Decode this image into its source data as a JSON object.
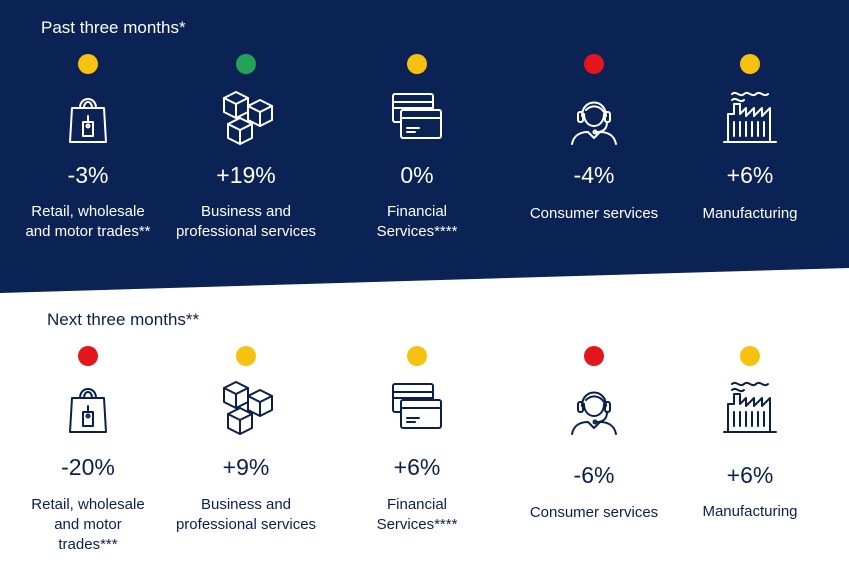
{
  "colors": {
    "banner": "#0b2255",
    "text_dark_bg": "#ffffff",
    "text_light_bg": "#0b1f4d",
    "status_yellow": "#f7c10f",
    "status_green": "#23a455",
    "status_red": "#e3161b"
  },
  "past": {
    "title": "Past three months*",
    "items": [
      {
        "icon": "shopping-bag-icon",
        "status": "yellow",
        "value": "-3%",
        "label_lines": [
          "Retail, wholesale",
          "and motor trades**"
        ]
      },
      {
        "icon": "boxes-icon",
        "status": "green",
        "value": "+19%",
        "label_lines": [
          "Business and",
          "professional services"
        ]
      },
      {
        "icon": "credit-cards-icon",
        "status": "yellow",
        "value": "0%",
        "label_lines": [
          "Financial",
          "Services****"
        ]
      },
      {
        "icon": "headset-agent-icon",
        "status": "red",
        "value": "-4%",
        "label_lines": [
          "Consumer services"
        ]
      },
      {
        "icon": "factory-icon",
        "status": "yellow",
        "value": "+6%",
        "label_lines": [
          "Manufacturing"
        ]
      }
    ]
  },
  "next": {
    "title": "Next three months**",
    "items": [
      {
        "icon": "shopping-bag-icon",
        "status": "red",
        "value": "-20%",
        "label_lines": [
          "Retail, wholesale",
          "and motor",
          "trades***"
        ]
      },
      {
        "icon": "boxes-icon",
        "status": "yellow",
        "value": "+9%",
        "label_lines": [
          "Business and",
          "professional services"
        ]
      },
      {
        "icon": "credit-cards-icon",
        "status": "yellow",
        "value": "+6%",
        "label_lines": [
          "Financial",
          "Services****"
        ]
      },
      {
        "icon": "headset-agent-icon",
        "status": "red",
        "value": "-6%",
        "label_lines": [
          "Consumer services"
        ]
      },
      {
        "icon": "factory-icon",
        "status": "yellow",
        "value": "+6%",
        "label_lines": [
          "Manufacturing"
        ]
      }
    ]
  }
}
